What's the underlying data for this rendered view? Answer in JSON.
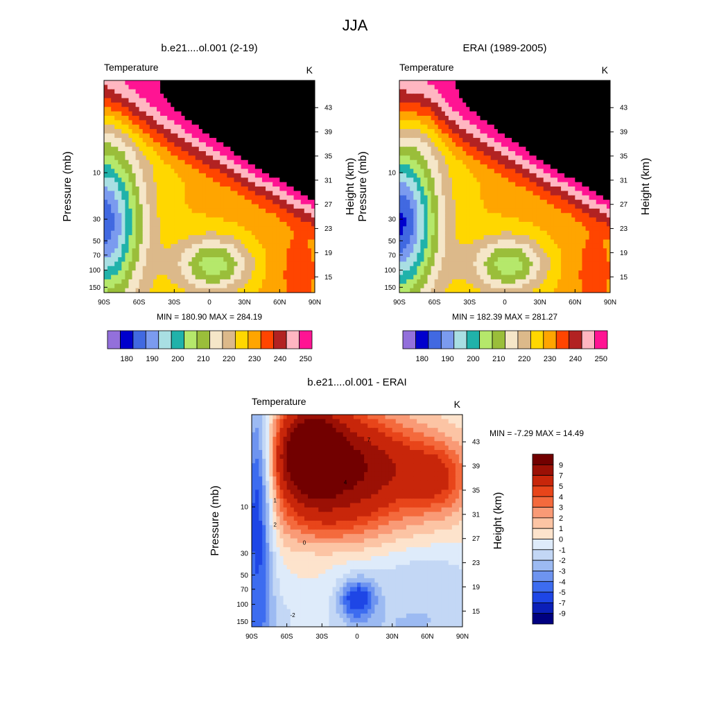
{
  "page": {
    "title": "JJA"
  },
  "colors": {
    "climo_palette": [
      "#9370db",
      "#0000cd",
      "#4169e1",
      "#7b9bef",
      "#a9dfe3",
      "#20b2aa",
      "#b5e86b",
      "#9abe3a",
      "#f5e6c8",
      "#dcb98a",
      "#ffd700",
      "#ffa500",
      "#ff4500",
      "#b22222",
      "#ffb6c1",
      "#ff1493"
    ],
    "diff_palette": [
      "#000080",
      "#0b1fb8",
      "#1e46e6",
      "#3d6cf0",
      "#6e94f0",
      "#9cbaf2",
      "#c3d7f5",
      "#deebfa",
      "#fde3cc",
      "#fcc4a4",
      "#f99a76",
      "#f46a3d",
      "#e8451a",
      "#c8260a",
      "#9b1005",
      "#720000"
    ]
  },
  "chart_data": [
    {
      "id": "model",
      "type": "heatmap",
      "title": "b.e21....ol.001 (2-19)",
      "variable": "Temperature",
      "units": "K",
      "xlabel": "",
      "ylabel": "Pressure (mb)",
      "ylabel_right": "Height (km)",
      "x_ticks": [
        "90S",
        "60S",
        "30S",
        "0",
        "30N",
        "60N",
        "90N"
      ],
      "xlim": [
        -90,
        90
      ],
      "y_ticks": [
        "10",
        "30",
        "50",
        "70",
        "100",
        "150"
      ],
      "y_tick_values": [
        10,
        30,
        50,
        70,
        100,
        150
      ],
      "ylim": [
        200,
        1.3
      ],
      "height_ticks": [
        "43",
        "39",
        "35",
        "31",
        "27",
        "23",
        "19",
        "15"
      ],
      "height_tick_values": [
        43,
        39,
        35,
        31,
        27,
        23,
        19,
        15
      ],
      "min_label": "MIN = 180.90",
      "max_label": "MAX = 284.19",
      "colorbar_labels": [
        "180",
        "190",
        "200",
        "210",
        "220",
        "230",
        "240",
        "250"
      ],
      "levels": [
        175,
        180,
        185,
        190,
        195,
        200,
        205,
        210,
        215,
        220,
        225,
        230,
        235,
        240,
        245,
        250
      ],
      "min": 180.9,
      "max": 284.19
    },
    {
      "id": "obs",
      "type": "heatmap",
      "title": "ERAI (1989-2005)",
      "variable": "Temperature",
      "units": "K",
      "xlabel": "",
      "ylabel": "Pressure (mb)",
      "ylabel_right": "Height (km)",
      "x_ticks": [
        "90S",
        "60S",
        "30S",
        "0",
        "30N",
        "60N",
        "90N"
      ],
      "xlim": [
        -90,
        90
      ],
      "y_ticks": [
        "10",
        "30",
        "50",
        "70",
        "100",
        "150"
      ],
      "y_tick_values": [
        10,
        30,
        50,
        70,
        100,
        150
      ],
      "ylim": [
        200,
        1.3
      ],
      "height_ticks": [
        "43",
        "39",
        "35",
        "31",
        "27",
        "23",
        "19",
        "15"
      ],
      "height_tick_values": [
        43,
        39,
        35,
        31,
        27,
        23,
        19,
        15
      ],
      "min_label": "MIN = 182.39",
      "max_label": "MAX = 281.27",
      "colorbar_labels": [
        "180",
        "190",
        "200",
        "210",
        "220",
        "230",
        "240",
        "250"
      ],
      "levels": [
        175,
        180,
        185,
        190,
        195,
        200,
        205,
        210,
        215,
        220,
        225,
        230,
        235,
        240,
        245,
        250
      ],
      "min": 182.39,
      "max": 281.27
    },
    {
      "id": "diff",
      "type": "heatmap",
      "title": "b.e21....ol.001 - ERAI",
      "variable": "Temperature",
      "units": "K",
      "xlabel": "",
      "ylabel": "Pressure (mb)",
      "ylabel_right": "Height (km)",
      "x_ticks": [
        "90S",
        "60S",
        "30S",
        "0",
        "30N",
        "60N",
        "90N"
      ],
      "xlim": [
        -90,
        90
      ],
      "y_ticks": [
        "10",
        "30",
        "50",
        "70",
        "100",
        "150"
      ],
      "y_tick_values": [
        10,
        30,
        50,
        70,
        100,
        150
      ],
      "ylim": [
        200,
        1.3
      ],
      "height_ticks": [
        "43",
        "39",
        "35",
        "31",
        "27",
        "23",
        "19",
        "15"
      ],
      "height_tick_values": [
        43,
        39,
        35,
        31,
        27,
        23,
        19,
        15
      ],
      "minmax_label": "MIN =  -7.29  MAX =  14.49",
      "colorbar_labels": [
        "9",
        "7",
        "5",
        "4",
        "3",
        "2",
        "1",
        "0",
        "-1",
        "-2",
        "-3",
        "-4",
        "-5",
        "-7",
        "-9"
      ],
      "levels": [
        -9,
        -7,
        -5,
        -4,
        -3,
        -2,
        -1,
        0,
        1,
        2,
        3,
        4,
        5,
        7,
        9
      ],
      "contour_labels": [
        "-2",
        "0",
        "1",
        "2",
        "4",
        "7"
      ],
      "min": -7.29,
      "max": 14.49
    }
  ]
}
